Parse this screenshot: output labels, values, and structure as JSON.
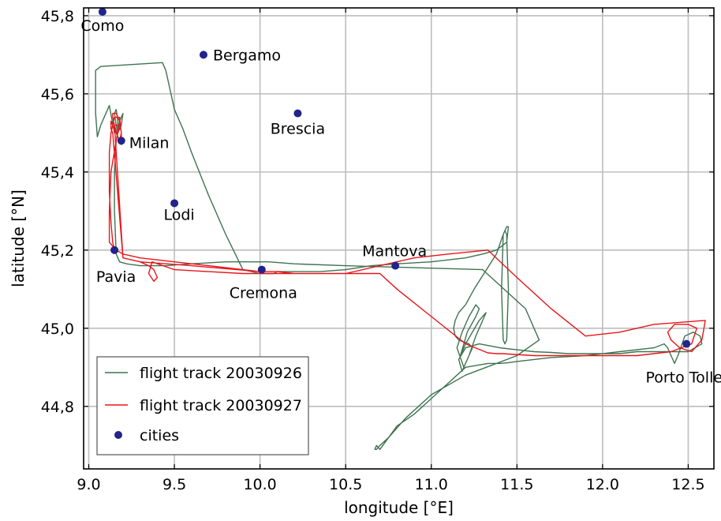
{
  "chart_data": {
    "type": "line",
    "title": "",
    "xlabel": "longitude [°E]",
    "ylabel": "latitude [°N]",
    "xlim": [
      8.97,
      12.65
    ],
    "ylim": [
      44.64,
      45.82
    ],
    "xticks": [
      9.0,
      9.5,
      10.0,
      10.5,
      11.0,
      11.5,
      12.0,
      12.5
    ],
    "xtick_labels": [
      "9.0",
      "9.5",
      "10.0",
      "10.5",
      "11.0",
      "11.5",
      "12.0",
      "12.5"
    ],
    "yticks": [
      44.8,
      45.0,
      45.2,
      45.4,
      45.6,
      45.8
    ],
    "ytick_labels": [
      "44,8",
      "45,0",
      "45,2",
      "45,4",
      "45,6",
      "45,8"
    ],
    "grid": true,
    "legend_position": "bottom-left",
    "colors": {
      "track_0926": "#3f7350",
      "track_0927": "#e8151b",
      "cities": "#23238c"
    },
    "series": [
      {
        "name": "flight track 20030926",
        "kind": "line",
        "color": "#3f7350",
        "x": [
          9.15,
          9.12,
          9.07,
          9.05,
          9.04,
          9.04,
          9.07,
          9.43,
          9.45,
          9.5,
          9.55,
          9.6,
          9.7,
          9.8,
          9.9,
          10.0,
          10.08,
          10.1,
          10.2,
          10.35,
          10.5,
          10.65,
          10.8,
          11.0,
          11.2,
          11.3,
          11.38,
          11.44,
          11.45,
          11.44,
          11.42,
          11.41,
          11.42,
          11.43,
          11.44,
          11.45,
          11.44,
          11.43,
          11.42,
          11.38,
          11.25,
          11.2,
          11.16,
          11.14,
          11.13,
          11.14,
          11.16,
          11.22,
          11.24,
          11.23,
          11.19,
          11.15,
          11.18,
          11.22,
          11.26,
          11.28,
          11.26,
          11.21,
          11.17,
          11.2,
          11.28,
          11.32,
          11.3,
          11.26,
          11.22,
          11.18,
          11.16,
          11.2,
          11.28,
          11.4,
          11.5,
          11.6,
          11.7,
          11.8,
          11.9,
          12.0,
          12.1,
          12.2,
          12.3,
          12.4,
          12.5,
          12.58,
          12.57,
          12.53,
          12.48,
          12.44,
          12.42,
          12.41,
          12.4,
          12.39,
          12.38,
          12.36,
          12.3,
          12.1,
          11.9,
          11.7,
          11.6,
          11.5,
          11.45,
          11.4,
          11.33,
          11.2,
          11.15,
          11.1,
          11.05,
          11.0,
          10.9,
          10.8,
          10.75,
          10.7,
          10.68,
          10.67,
          10.68,
          10.7,
          10.75,
          10.85,
          11.0,
          11.2,
          11.5,
          11.63,
          11.55,
          11.3,
          10.9,
          10.5,
          10.2,
          10.05,
          9.8,
          9.6,
          9.45,
          9.3,
          9.22,
          9.18,
          9.16,
          9.15,
          9.15,
          9.16,
          9.18,
          9.2,
          9.2,
          9.19,
          9.17,
          9.16,
          9.15,
          9.16,
          9.17,
          9.17
        ],
        "y": [
          45.5,
          45.57,
          45.52,
          45.49,
          45.55,
          45.66,
          45.67,
          45.68,
          45.66,
          45.56,
          45.51,
          45.45,
          45.34,
          45.24,
          45.15,
          45.14,
          45.14,
          45.145,
          45.145,
          45.145,
          45.15,
          45.16,
          45.165,
          45.17,
          45.18,
          45.19,
          45.2,
          45.22,
          45.26,
          45.26,
          45.24,
          45.1,
          44.97,
          44.96,
          44.97,
          45.1,
          45.24,
          45.25,
          45.24,
          45.19,
          45.1,
          45.06,
          45.04,
          45.02,
          45.0,
          44.98,
          44.97,
          44.96,
          44.95,
          44.94,
          44.9,
          44.95,
          44.99,
          45.03,
          45.06,
          45.05,
          45.03,
          44.99,
          44.93,
          44.96,
          45.02,
          45.04,
          45.02,
          44.98,
          44.93,
          44.89,
          44.92,
          44.95,
          44.96,
          44.95,
          44.945,
          44.94,
          44.938,
          44.935,
          44.935,
          44.935,
          44.935,
          44.94,
          44.94,
          44.94,
          44.94,
          44.96,
          44.98,
          44.99,
          44.98,
          44.93,
          44.91,
          44.92,
          44.93,
          44.94,
          44.95,
          44.96,
          44.95,
          44.94,
          44.93,
          44.925,
          44.92,
          44.915,
          44.912,
          44.91,
          44.91,
          44.9,
          44.88,
          44.86,
          44.84,
          44.82,
          44.78,
          44.75,
          44.72,
          44.7,
          44.69,
          44.69,
          44.7,
          44.69,
          44.72,
          44.77,
          44.83,
          44.88,
          44.93,
          44.97,
          45.05,
          45.15,
          45.155,
          45.16,
          45.165,
          45.17,
          45.17,
          45.165,
          45.16,
          45.16,
          45.165,
          45.17,
          45.19,
          45.3,
          45.4,
          45.48,
          45.53,
          45.55,
          45.55,
          45.52,
          45.5,
          45.52,
          45.55,
          45.56,
          45.53,
          45.5
        ]
      },
      {
        "name": "flight track 20030927",
        "kind": "line",
        "color": "#e8151b",
        "x": [
          9.15,
          9.14,
          9.13,
          9.12,
          9.12,
          9.12,
          9.13,
          9.15,
          9.18,
          9.19,
          9.19,
          9.17,
          9.15,
          9.14,
          9.14,
          9.16,
          9.18,
          9.19,
          9.18,
          9.16,
          9.14,
          9.13,
          9.13,
          9.14,
          9.2,
          9.3,
          9.35,
          9.38,
          9.4,
          9.38,
          9.35,
          9.37,
          9.5,
          9.7,
          9.9,
          10.0,
          10.1,
          10.3,
          10.5,
          10.7,
          10.9,
          11.1,
          11.33,
          11.5,
          11.7,
          11.9,
          12.1,
          12.3,
          12.6,
          12.58,
          12.52,
          12.45,
          12.4,
          12.38,
          12.42,
          12.5,
          12.55,
          12.52,
          12.4,
          12.2,
          12.0,
          11.85,
          11.7,
          11.6,
          11.45,
          11.42,
          11.38,
          11.33,
          11.2,
          11.0,
          10.8,
          10.7,
          10.6,
          10.4,
          10.2,
          10.1,
          10.0,
          9.9,
          9.7,
          9.5,
          9.3,
          9.2,
          9.16,
          9.14,
          9.12,
          9.12,
          9.13,
          9.16,
          9.18,
          9.15,
          9.2,
          9.3,
          9.6,
          10.0
        ],
        "y": [
          45.2,
          45.22,
          45.27,
          45.35,
          45.4,
          45.45,
          45.5,
          45.54,
          45.54,
          45.5,
          45.47,
          45.49,
          45.52,
          45.54,
          45.55,
          45.55,
          45.53,
          45.5,
          45.48,
          45.5,
          45.52,
          45.53,
          45.51,
          45.5,
          45.18,
          45.17,
          45.16,
          45.15,
          45.13,
          45.12,
          45.14,
          45.17,
          45.15,
          45.145,
          45.14,
          45.14,
          45.14,
          45.14,
          45.14,
          45.16,
          45.18,
          45.19,
          45.2,
          45.13,
          45.05,
          44.98,
          44.99,
          45.01,
          45.02,
          44.97,
          44.94,
          44.95,
          44.97,
          44.99,
          45.01,
          45.01,
          45.0,
          44.96,
          44.94,
          44.93,
          44.93,
          44.93,
          44.93,
          44.93,
          44.934,
          44.935,
          44.935,
          44.937,
          44.96,
          45.03,
          45.1,
          45.14,
          45.14,
          45.14,
          45.14,
          45.145,
          45.145,
          45.15,
          45.16,
          45.17,
          45.18,
          45.19,
          45.2,
          45.21,
          45.22,
          45.3,
          45.4,
          45.48,
          45.52,
          45.52,
          45.18,
          45.17,
          45.16,
          45.145
        ]
      },
      {
        "name": "cities",
        "kind": "scatter",
        "color": "#23238c",
        "points": [
          {
            "label": "Como",
            "x": 9.08,
            "y": 45.81,
            "anchor": "below",
            "dx": 0,
            "dy": 24
          },
          {
            "label": "Bergamo",
            "x": 9.67,
            "y": 45.7,
            "anchor": "right",
            "dx": 12,
            "dy": 7
          },
          {
            "label": "Brescia",
            "x": 10.22,
            "y": 45.55,
            "anchor": "below",
            "dx": 0,
            "dy": 26
          },
          {
            "label": "Milan",
            "x": 9.19,
            "y": 45.48,
            "anchor": "right",
            "dx": 10,
            "dy": 9
          },
          {
            "label": "Lodi",
            "x": 9.5,
            "y": 45.32,
            "anchor": "below",
            "dx": 6,
            "dy": 21
          },
          {
            "label": "Pavia",
            "x": 9.15,
            "y": 45.2,
            "anchor": "below-left",
            "dx": 2,
            "dy": 40
          },
          {
            "label": "Cremona",
            "x": 10.01,
            "y": 45.15,
            "anchor": "below",
            "dx": 2,
            "dy": 36
          },
          {
            "label": "Mantova",
            "x": 10.79,
            "y": 45.16,
            "anchor": "above-left",
            "dx": -1,
            "dy": -12
          },
          {
            "label": "Porto Tolle",
            "x": 12.49,
            "y": 44.96,
            "anchor": "below",
            "dx": -3,
            "dy": 49
          }
        ]
      }
    ]
  }
}
